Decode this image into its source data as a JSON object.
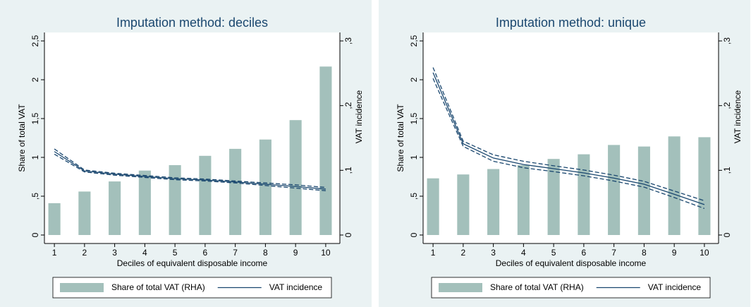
{
  "chart_data": [
    {
      "type": "combo",
      "title": "Imputation method: deciles",
      "x_label": "Deciles of equivalent disposable income",
      "y_label": "Share of total VAT",
      "y2_label": "VAT incidence",
      "x": [
        1,
        2,
        3,
        4,
        5,
        6,
        7,
        8,
        9,
        10
      ],
      "xlim": [
        0.67,
        10.47
      ],
      "xticks": [
        1,
        2,
        3,
        4,
        5,
        6,
        7,
        8,
        9,
        10
      ],
      "ylim": [
        0,
        2.5
      ],
      "yticks": [
        0,
        {
          "value": 0.5,
          "label": ",5"
        },
        1,
        {
          "value": 1.5,
          "label": "1,5"
        },
        2,
        {
          "value": 2.5,
          "label": "2,5"
        }
      ],
      "y2lim": [
        0,
        0.3
      ],
      "y2ticks": [
        0,
        {
          "value": 0.1,
          "label": ",1"
        },
        {
          "value": 0.2,
          "label": ",2"
        },
        {
          "value": 0.3,
          "label": ",3"
        }
      ],
      "series": [
        {
          "name": "Share of total VAT (RHA)",
          "type": "bar",
          "color": "#a3c0bb",
          "values": [
            0.41,
            0.56,
            0.69,
            0.83,
            0.9,
            1.02,
            1.11,
            1.23,
            1.48,
            2.17
          ]
        },
        {
          "name": "VAT incidence",
          "type": "line",
          "axis": "y2",
          "color": "#1a476f",
          "values": [
            0.129,
            0.099,
            0.094,
            0.0905,
            0.087,
            0.085,
            0.082,
            0.0785,
            0.075,
            0.071
          ],
          "upper": [
            0.133,
            0.1005,
            0.0955,
            0.092,
            0.0885,
            0.0865,
            0.0835,
            0.0805,
            0.0775,
            0.0735
          ],
          "lower": [
            0.125,
            0.0975,
            0.0925,
            0.089,
            0.0855,
            0.0835,
            0.0805,
            0.0765,
            0.0725,
            0.0685
          ]
        }
      ]
    },
    {
      "type": "combo",
      "title": "Imputation method: unique",
      "x_label": "Deciles of equivalent disposable income",
      "y_label": "Share of total VAT",
      "y2_label": "VAT incidence",
      "x": [
        1,
        2,
        3,
        4,
        5,
        6,
        7,
        8,
        9,
        10
      ],
      "xlim": [
        0.67,
        10.47
      ],
      "xticks": [
        1,
        2,
        3,
        4,
        5,
        6,
        7,
        8,
        9,
        10
      ],
      "ylim": [
        0,
        2.5
      ],
      "yticks": [
        0,
        {
          "value": 0.5,
          "label": ",5"
        },
        1,
        {
          "value": 1.5,
          "label": "1,5"
        },
        2,
        {
          "value": 2.5,
          "label": "2,5"
        }
      ],
      "y2lim": [
        0,
        0.3
      ],
      "y2ticks": [
        0,
        {
          "value": 0.1,
          "label": ",1"
        },
        {
          "value": 0.2,
          "label": ",2"
        },
        {
          "value": 0.3,
          "label": ",3"
        }
      ],
      "series": [
        {
          "name": "Share of total VAT (RHA)",
          "type": "bar",
          "color": "#a3c0bb",
          "values": [
            0.73,
            0.78,
            0.85,
            0.9,
            0.98,
            1.04,
            1.16,
            1.14,
            1.27,
            1.26
          ]
        },
        {
          "name": "VAT incidence",
          "type": "line",
          "axis": "y2",
          "color": "#1a476f",
          "values": [
            0.251,
            0.141,
            0.119,
            0.109,
            0.1025,
            0.096,
            0.088,
            0.0785,
            0.063,
            0.047
          ],
          "upper": [
            0.259,
            0.145,
            0.124,
            0.114,
            0.107,
            0.1005,
            0.0925,
            0.083,
            0.068,
            0.053
          ],
          "lower": [
            0.242,
            0.137,
            0.114,
            0.104,
            0.098,
            0.0915,
            0.0835,
            0.074,
            0.058,
            0.041
          ]
        }
      ]
    }
  ]
}
